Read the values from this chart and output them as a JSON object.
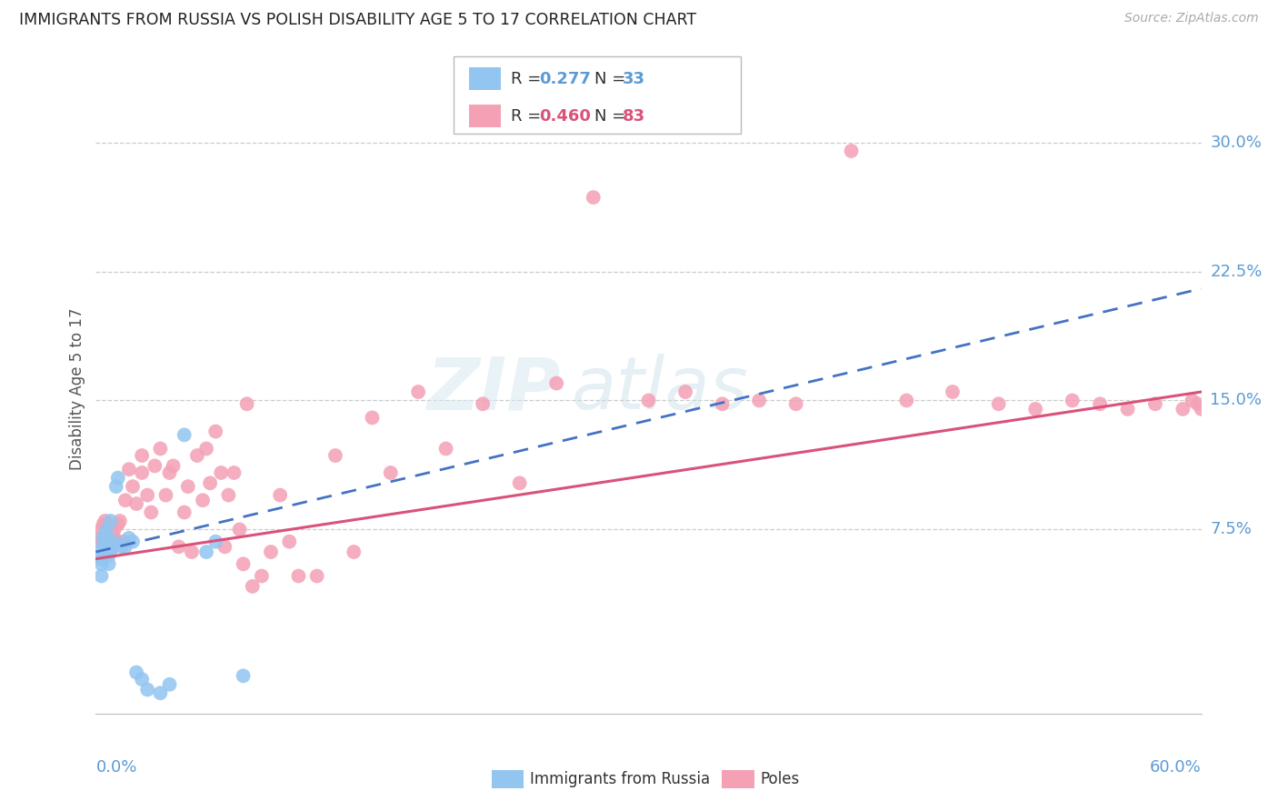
{
  "title": "IMMIGRANTS FROM RUSSIA VS POLISH DISABILITY AGE 5 TO 17 CORRELATION CHART",
  "source": "Source: ZipAtlas.com",
  "ylabel": "Disability Age 5 to 17",
  "xlim": [
    0.0,
    0.6
  ],
  "ylim": [
    -0.032,
    0.345
  ],
  "ytick_values": [
    0.075,
    0.15,
    0.225,
    0.3
  ],
  "ytick_labels": [
    "7.5%",
    "15.0%",
    "22.5%",
    "30.0%"
  ],
  "legend_blue_r": "0.277",
  "legend_blue_n": "33",
  "legend_pink_r": "0.460",
  "legend_pink_n": "83",
  "legend_label_blue": "Immigrants from Russia",
  "legend_label_pink": "Poles",
  "blue_color": "#92C5F0",
  "pink_color": "#F4A0B5",
  "blue_line_color": "#4472C4",
  "pink_line_color": "#D9527A",
  "watermark_zip": "ZIP",
  "watermark_atlas": "atlas",
  "blue_x": [
    0.002,
    0.002,
    0.003,
    0.003,
    0.004,
    0.004,
    0.004,
    0.005,
    0.005,
    0.005,
    0.006,
    0.006,
    0.007,
    0.007,
    0.008,
    0.008,
    0.009,
    0.01,
    0.011,
    0.012,
    0.014,
    0.016,
    0.018,
    0.02,
    0.022,
    0.025,
    0.028,
    0.035,
    0.04,
    0.048,
    0.06,
    0.065,
    0.08
  ],
  "blue_y": [
    0.062,
    0.058,
    0.055,
    0.048,
    0.065,
    0.07,
    0.058,
    0.072,
    0.06,
    0.068,
    0.075,
    0.065,
    0.06,
    0.055,
    0.08,
    0.065,
    0.065,
    0.068,
    0.1,
    0.105,
    0.065,
    0.065,
    0.07,
    0.068,
    -0.008,
    -0.012,
    -0.018,
    -0.02,
    -0.015,
    0.13,
    0.062,
    0.068,
    -0.01
  ],
  "pink_x": [
    0.002,
    0.003,
    0.003,
    0.004,
    0.004,
    0.005,
    0.005,
    0.006,
    0.006,
    0.007,
    0.007,
    0.008,
    0.009,
    0.01,
    0.01,
    0.011,
    0.012,
    0.013,
    0.015,
    0.016,
    0.018,
    0.02,
    0.022,
    0.025,
    0.025,
    0.028,
    0.03,
    0.032,
    0.035,
    0.038,
    0.04,
    0.042,
    0.045,
    0.048,
    0.05,
    0.052,
    0.055,
    0.058,
    0.06,
    0.062,
    0.065,
    0.068,
    0.07,
    0.072,
    0.075,
    0.078,
    0.08,
    0.082,
    0.085,
    0.09,
    0.095,
    0.1,
    0.105,
    0.11,
    0.12,
    0.13,
    0.14,
    0.15,
    0.16,
    0.175,
    0.19,
    0.21,
    0.23,
    0.25,
    0.27,
    0.3,
    0.32,
    0.34,
    0.36,
    0.38,
    0.41,
    0.44,
    0.465,
    0.49,
    0.51,
    0.53,
    0.545,
    0.56,
    0.575,
    0.59,
    0.595,
    0.598,
    0.6
  ],
  "pink_y": [
    0.07,
    0.068,
    0.075,
    0.062,
    0.078,
    0.065,
    0.08,
    0.072,
    0.078,
    0.068,
    0.075,
    0.062,
    0.072,
    0.07,
    0.075,
    0.068,
    0.078,
    0.08,
    0.068,
    0.092,
    0.11,
    0.1,
    0.09,
    0.108,
    0.118,
    0.095,
    0.085,
    0.112,
    0.122,
    0.095,
    0.108,
    0.112,
    0.065,
    0.085,
    0.1,
    0.062,
    0.118,
    0.092,
    0.122,
    0.102,
    0.132,
    0.108,
    0.065,
    0.095,
    0.108,
    0.075,
    0.055,
    0.148,
    0.042,
    0.048,
    0.062,
    0.095,
    0.068,
    0.048,
    0.048,
    0.118,
    0.062,
    0.14,
    0.108,
    0.155,
    0.122,
    0.148,
    0.102,
    0.16,
    0.268,
    0.15,
    0.155,
    0.148,
    0.15,
    0.148,
    0.295,
    0.15,
    0.155,
    0.148,
    0.145,
    0.15,
    0.148,
    0.145,
    0.148,
    0.145,
    0.15,
    0.148,
    0.145
  ]
}
